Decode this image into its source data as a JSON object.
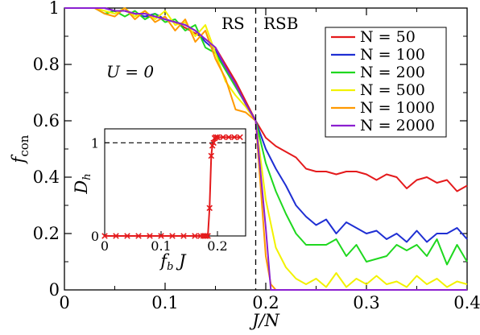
{
  "chart_data": [
    {
      "type": "line",
      "xlabel": "J/N",
      "ylabel": "f_con",
      "xlim": [
        0,
        0.4
      ],
      "ylim": [
        0,
        1
      ],
      "xticks": [
        "0",
        "0.1",
        "0.2",
        "0.3",
        "0.4"
      ],
      "yticks": [
        "0",
        "0.2",
        "0.4",
        "0.6",
        "0.8",
        "1"
      ],
      "legend_position": "top-right",
      "annotations": {
        "rs": "RS",
        "rsb": "RSB",
        "u": "U = 0",
        "transition_x": 0.19
      },
      "series": [
        {
          "name": "N = 50",
          "color": "#e41a1c",
          "x": [
            0,
            0.01,
            0.02,
            0.03,
            0.04,
            0.05,
            0.06,
            0.07,
            0.08,
            0.09,
            0.1,
            0.11,
            0.12,
            0.13,
            0.14,
            0.15,
            0.16,
            0.17,
            0.18,
            0.19,
            0.2,
            0.21,
            0.22,
            0.23,
            0.24,
            0.25,
            0.26,
            0.27,
            0.28,
            0.29,
            0.3,
            0.31,
            0.32,
            0.33,
            0.34,
            0.35,
            0.36,
            0.37,
            0.38,
            0.39,
            0.4
          ],
          "y": [
            1,
            1,
            1,
            1,
            1,
            0.99,
            0.99,
            0.98,
            0.97,
            0.97,
            0.96,
            0.95,
            0.93,
            0.91,
            0.89,
            0.86,
            0.8,
            0.74,
            0.67,
            0.6,
            0.54,
            0.51,
            0.49,
            0.47,
            0.43,
            0.42,
            0.42,
            0.41,
            0.42,
            0.42,
            0.41,
            0.39,
            0.41,
            0.4,
            0.36,
            0.39,
            0.4,
            0.38,
            0.39,
            0.35,
            0.37
          ]
        },
        {
          "name": "N = 100",
          "color": "#1f2fd3",
          "x": [
            0,
            0.01,
            0.02,
            0.03,
            0.04,
            0.05,
            0.06,
            0.07,
            0.08,
            0.09,
            0.1,
            0.11,
            0.12,
            0.13,
            0.14,
            0.15,
            0.16,
            0.17,
            0.18,
            0.19,
            0.2,
            0.21,
            0.22,
            0.23,
            0.24,
            0.25,
            0.26,
            0.27,
            0.28,
            0.29,
            0.3,
            0.31,
            0.32,
            0.33,
            0.34,
            0.35,
            0.36,
            0.37,
            0.38,
            0.39,
            0.4
          ],
          "y": [
            1,
            1,
            1,
            1,
            1,
            0.99,
            0.99,
            0.98,
            0.97,
            0.98,
            0.96,
            0.95,
            0.94,
            0.92,
            0.88,
            0.85,
            0.79,
            0.73,
            0.66,
            0.6,
            0.5,
            0.43,
            0.37,
            0.3,
            0.26,
            0.23,
            0.25,
            0.2,
            0.24,
            0.22,
            0.2,
            0.21,
            0.18,
            0.2,
            0.17,
            0.21,
            0.17,
            0.2,
            0.2,
            0.22,
            0.18
          ]
        },
        {
          "name": "N = 200",
          "color": "#1fd81f",
          "x": [
            0,
            0.01,
            0.02,
            0.03,
            0.04,
            0.05,
            0.06,
            0.07,
            0.08,
            0.09,
            0.1,
            0.11,
            0.12,
            0.13,
            0.14,
            0.15,
            0.16,
            0.17,
            0.18,
            0.19,
            0.2,
            0.21,
            0.22,
            0.23,
            0.24,
            0.25,
            0.26,
            0.27,
            0.28,
            0.29,
            0.3,
            0.31,
            0.32,
            0.33,
            0.34,
            0.35,
            0.36,
            0.37,
            0.38,
            0.39,
            0.4
          ],
          "y": [
            1,
            1,
            1,
            1,
            0.98,
            0.99,
            0.97,
            0.99,
            0.96,
            0.98,
            0.95,
            0.96,
            0.92,
            0.94,
            0.86,
            0.84,
            0.78,
            0.72,
            0.66,
            0.6,
            0.45,
            0.35,
            0.27,
            0.2,
            0.16,
            0.16,
            0.16,
            0.18,
            0.12,
            0.16,
            0.1,
            0.11,
            0.12,
            0.16,
            0.14,
            0.16,
            0.12,
            0.18,
            0.09,
            0.16,
            0.1
          ]
        },
        {
          "name": "N = 500",
          "color": "#f2f200",
          "x": [
            0,
            0.01,
            0.02,
            0.03,
            0.04,
            0.05,
            0.06,
            0.07,
            0.08,
            0.09,
            0.1,
            0.11,
            0.12,
            0.13,
            0.14,
            0.15,
            0.16,
            0.17,
            0.18,
            0.19,
            0.2,
            0.21,
            0.22,
            0.23,
            0.24,
            0.25,
            0.26,
            0.27,
            0.28,
            0.29,
            0.3,
            0.31,
            0.32,
            0.33,
            0.34,
            0.35,
            0.36,
            0.37,
            0.38,
            0.39,
            0.4
          ],
          "y": [
            1,
            1,
            1,
            1,
            0.99,
            0.98,
            1,
            0.97,
            0.99,
            0.96,
            0.99,
            0.94,
            0.95,
            0.9,
            0.94,
            0.84,
            0.74,
            0.69,
            0.65,
            0.6,
            0.32,
            0.15,
            0.08,
            0.04,
            0.02,
            0.04,
            0.01,
            0.06,
            0.01,
            0.04,
            0.02,
            0.05,
            0.02,
            0.03,
            0.01,
            0.05,
            0.02,
            0.04,
            0.01,
            0.03,
            0.02
          ]
        },
        {
          "name": "N = 1000",
          "color": "#ff9900",
          "x": [
            0,
            0.01,
            0.02,
            0.03,
            0.04,
            0.05,
            0.06,
            0.07,
            0.08,
            0.09,
            0.1,
            0.11,
            0.12,
            0.13,
            0.14,
            0.15,
            0.16,
            0.17,
            0.18,
            0.19,
            0.2,
            0.205,
            0.21,
            0.22,
            0.23,
            0.24,
            0.25,
            0.26,
            0.27,
            0.28,
            0.29,
            0.3,
            0.31,
            0.32,
            0.33,
            0.34,
            0.35,
            0.36,
            0.37,
            0.38,
            0.39,
            0.4
          ],
          "y": [
            1,
            1,
            1,
            1,
            0.98,
            0.97,
            1,
            0.96,
            0.99,
            0.95,
            0.97,
            0.92,
            0.96,
            0.88,
            0.92,
            0.82,
            0.75,
            0.64,
            0.63,
            0.6,
            0.12,
            0.02,
            0,
            0,
            0,
            0,
            0,
            0,
            0,
            0,
            0,
            0,
            0,
            0,
            0,
            0,
            0,
            0,
            0,
            0,
            0,
            0
          ]
        },
        {
          "name": "N = 2000",
          "color": "#8b1fd0",
          "x": [
            0,
            0.01,
            0.02,
            0.03,
            0.04,
            0.05,
            0.06,
            0.07,
            0.08,
            0.09,
            0.1,
            0.11,
            0.12,
            0.13,
            0.14,
            0.15,
            0.16,
            0.17,
            0.18,
            0.19,
            0.2,
            0.205,
            0.21,
            0.22,
            0.23,
            0.24,
            0.25,
            0.26,
            0.27,
            0.28,
            0.29,
            0.3,
            0.31,
            0.32,
            0.33,
            0.34,
            0.35,
            0.36,
            0.37,
            0.38,
            0.39,
            0.4
          ],
          "y": [
            1,
            1,
            1,
            1,
            1,
            0.99,
            0.99,
            0.98,
            0.98,
            0.97,
            0.96,
            0.95,
            0.94,
            0.92,
            0.89,
            0.86,
            0.79,
            0.73,
            0.66,
            0.6,
            0.22,
            0,
            0,
            0,
            0,
            0,
            0,
            0,
            0,
            0,
            0,
            0,
            0,
            0,
            0,
            0,
            0,
            0,
            0,
            0,
            0,
            0
          ]
        }
      ]
    },
    {
      "type": "line",
      "xlabel": "f_b J",
      "ylabel": "D_h",
      "xlim": [
        0,
        0.25
      ],
      "ylim": [
        0,
        1.15
      ],
      "xticks": [
        "0",
        "0.1",
        "0.2"
      ],
      "yticks": [
        "0",
        "1"
      ],
      "reference_line_y": 1,
      "series": [
        {
          "name": "",
          "color": "#e41a1c",
          "marker": "x",
          "x": [
            0,
            0.02,
            0.04,
            0.06,
            0.08,
            0.1,
            0.12,
            0.14,
            0.16,
            0.17,
            0.175,
            0.178,
            0.18,
            0.183,
            0.186,
            0.189,
            0.191,
            0.193,
            0.195,
            0.197,
            0.2,
            0.21,
            0.22,
            0.23,
            0.24
          ],
          "y": [
            0,
            0,
            0,
            0,
            0,
            0,
            0,
            0,
            0,
            0,
            0,
            0,
            0,
            0,
            0.3,
            0.86,
            0.97,
            1.0,
            1.05,
            1.06,
            1.06,
            1.06,
            1.06,
            1.06,
            1.06
          ]
        }
      ]
    }
  ]
}
